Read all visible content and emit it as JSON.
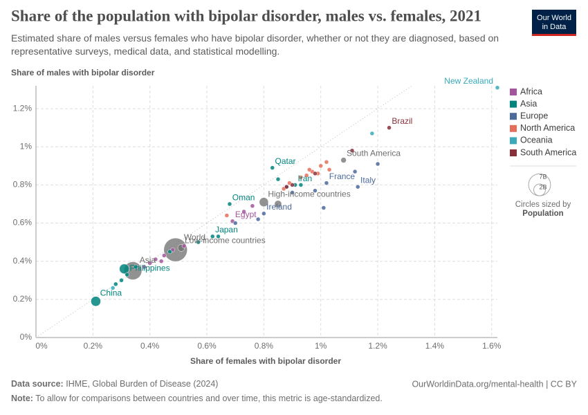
{
  "logo": [
    "Our World",
    "in Data"
  ],
  "chart_data": {
    "type": "scatter",
    "title": "Share of the population with bipolar disorder, males vs. females, 2021",
    "subtitle": "Estimated share of males versus females who have bipolar disorder, whether or not they are diagnosed, based on representative surveys, medical data, and statistical modelling.",
    "y_label": "Share of males with bipolar disorder",
    "x_label": "Share of females with bipolar disorder",
    "xlim": [
      0,
      1.62
    ],
    "ylim": [
      0,
      1.32
    ],
    "xticks": [
      {
        "value": 0,
        "label": "0%"
      },
      {
        "value": 0.2,
        "label": "0.2%"
      },
      {
        "value": 0.4,
        "label": "0.4%"
      },
      {
        "value": 0.6,
        "label": "0.6%"
      },
      {
        "value": 0.8,
        "label": "0.8%"
      },
      {
        "value": 1,
        "label": "1%"
      },
      {
        "value": 1.2,
        "label": "1.2%"
      },
      {
        "value": 1.4,
        "label": "1.4%"
      },
      {
        "value": 1.6,
        "label": "1.6%"
      }
    ],
    "yticks": [
      {
        "value": 0,
        "label": "0%"
      },
      {
        "value": 0.2,
        "label": "0.2%"
      },
      {
        "value": 0.4,
        "label": "0.4%"
      },
      {
        "value": 0.6,
        "label": "0.6%"
      },
      {
        "value": 0.8,
        "label": "0.8%"
      },
      {
        "value": 1,
        "label": "1%"
      },
      {
        "value": 1.2,
        "label": "1.2%"
      }
    ],
    "grid": true,
    "series": [
      {
        "name": "Africa",
        "color": "#a2559c",
        "x": [
          0.69,
          0.45,
          0.42,
          0.38,
          0.52,
          0.44,
          0.73,
          0.76,
          0.4,
          0.48
        ],
        "y": [
          0.61,
          0.43,
          0.41,
          0.37,
          0.48,
          0.4,
          0.66,
          0.69,
          0.39,
          0.46
        ],
        "size": [
          0.11,
          0.05,
          0.05,
          0.05,
          0.05,
          0.05,
          0.05,
          0.05,
          0.05,
          0.05
        ],
        "labels": [
          "Egypt",
          null,
          null,
          null,
          null,
          null,
          null,
          null,
          null,
          null
        ]
      },
      {
        "name": "Asia",
        "color": "#00847e",
        "x": [
          0.21,
          0.31,
          0.32,
          0.62,
          0.68,
          0.83,
          0.91,
          0.3,
          0.28,
          0.57,
          0.64,
          0.85,
          0.93,
          0.35,
          0.47
        ],
        "y": [
          0.19,
          0.36,
          0.33,
          0.53,
          0.7,
          0.89,
          0.8,
          0.3,
          0.28,
          0.5,
          0.53,
          0.83,
          0.8,
          0.37,
          0.45
        ],
        "size": [
          1.4,
          1.4,
          0.11,
          0.12,
          0.05,
          0.05,
          0.09,
          0.05,
          0.05,
          0.05,
          0.05,
          0.05,
          0.05,
          0.05,
          0.05
        ],
        "labels": [
          "China",
          null,
          "Philippines",
          "Japan",
          "Oman",
          "Qatar",
          "Iran",
          null,
          null,
          null,
          null,
          null,
          null,
          null,
          null
        ]
      },
      {
        "name": "Europe",
        "color": "#4c6a9c",
        "x": [
          1.02,
          1.13,
          0.8,
          1.2,
          1.12,
          1.01,
          0.98,
          0.88,
          0.9,
          0.78,
          0.7
        ],
        "y": [
          0.81,
          0.79,
          0.65,
          0.91,
          0.87,
          0.68,
          0.77,
          0.79,
          0.76,
          0.62,
          0.6
        ],
        "size": [
          0.07,
          0.06,
          0.05,
          0.05,
          0.05,
          0.05,
          0.05,
          0.05,
          0.05,
          0.05,
          0.05
        ],
        "labels": [
          "France",
          "Italy",
          "Ireland",
          null,
          null,
          null,
          null,
          null,
          null,
          null,
          null
        ]
      },
      {
        "name": "North America",
        "color": "#e56e5a",
        "x": [
          0.67,
          0.95,
          0.97,
          1.0,
          1.02,
          0.99,
          0.89,
          0.93,
          0.87,
          1.03,
          0.96
        ],
        "y": [
          0.64,
          0.85,
          0.87,
          0.9,
          0.92,
          0.86,
          0.81,
          0.84,
          0.78,
          0.88,
          0.88
        ],
        "size": [
          0.13,
          0.05,
          0.05,
          0.05,
          0.05,
          0.05,
          0.05,
          0.05,
          0.05,
          0.05,
          0.05
        ],
        "labels": [
          null,
          null,
          null,
          null,
          null,
          null,
          null,
          null,
          null,
          null,
          null
        ]
      },
      {
        "name": "Oceania",
        "color": "#38aaba",
        "x": [
          1.62,
          1.18,
          0.27
        ],
        "y": [
          1.31,
          1.07,
          0.26
        ],
        "size": [
          0.05,
          0.05,
          0.05
        ],
        "labels": [
          "New Zealand",
          null,
          null
        ]
      },
      {
        "name": "South America",
        "color": "#883039",
        "x": [
          1.24,
          1.11,
          0.9,
          0.88,
          0.98
        ],
        "y": [
          1.1,
          0.98,
          0.8,
          0.79,
          0.86
        ],
        "size": [
          0.22,
          0.05,
          0.05,
          0.05,
          0.05
        ],
        "labels": [
          "Brazil",
          null,
          null,
          null,
          null
        ]
      }
    ],
    "aggregates": {
      "color": "#6d6d6d",
      "x": [
        0.49,
        0.34,
        0.51,
        0.8,
        1.08,
        0.85
      ],
      "y": [
        0.46,
        0.35,
        0.47,
        0.71,
        0.93,
        0.7
      ],
      "size": [
        8,
        4.7,
        0.7,
        1.2,
        0.43,
        0.75
      ],
      "labels": [
        "World",
        "Asia",
        "Low-income countries",
        "High-income countries",
        "South America",
        null
      ]
    },
    "size_legend": {
      "title": "Circles sized by",
      "variable": "Population",
      "circles": [
        {
          "value": 7,
          "label": "7B"
        },
        {
          "value": 2,
          "label": "2B"
        }
      ]
    },
    "source_label": "Data source:",
    "source": "IHME, Global Burden of Disease (2024)",
    "url": "OurWorldinData.org/mental-health | CC BY",
    "note_label": "Note:",
    "note": "To allow for comparisons between countries and over time, this metric is age-standardized."
  }
}
